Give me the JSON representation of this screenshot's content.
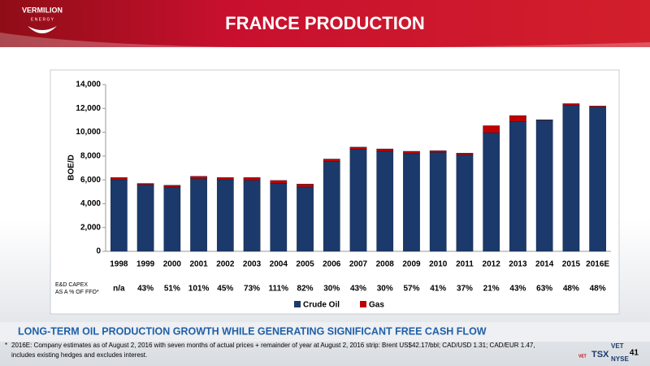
{
  "header": {
    "logo_name": "VERMILION",
    "logo_sub": "E N E R G Y",
    "title": "FRANCE PRODUCTION"
  },
  "chart_data": {
    "type": "bar",
    "stacked": true,
    "ylabel": "BOE/D",
    "categories": [
      "1998",
      "1999",
      "2000",
      "2001",
      "2002",
      "2003",
      "2004",
      "2005",
      "2006",
      "2007",
      "2008",
      "2009",
      "2010",
      "2011",
      "2012",
      "2013",
      "2014",
      "2015",
      "2016E"
    ],
    "series": [
      {
        "name": "Crude Oil",
        "color": "#1b3a6b",
        "values": [
          6000,
          5600,
          5400,
          6100,
          6000,
          5950,
          5700,
          5400,
          7550,
          8550,
          8400,
          8200,
          8300,
          8100,
          9950,
          10900,
          11000,
          12250,
          12100
        ]
      },
      {
        "name": "Gas",
        "color": "#c00000",
        "values": [
          200,
          100,
          150,
          200,
          200,
          250,
          250,
          250,
          200,
          200,
          200,
          200,
          150,
          150,
          600,
          500,
          50,
          150,
          100
        ]
      }
    ],
    "ylim": [
      0,
      14000
    ],
    "yticks": [
      0,
      {
        "value": 2000,
        "label": "2,000"
      },
      {
        "value": 4000,
        "label": "4,000"
      },
      {
        "value": 6000,
        "label": "6,000"
      },
      {
        "value": 8000,
        "label": "8,000"
      },
      {
        "value": 10000,
        "label": "10,000"
      },
      {
        "value": 12000,
        "label": "12,000"
      },
      {
        "value": 14000,
        "label": "14,000"
      }
    ],
    "grid": false,
    "legend": "bottom"
  },
  "table": {
    "row_label": [
      "E&D CAPEX",
      "AS A % OF FFO*"
    ],
    "values": [
      "n/a",
      "43%",
      "51%",
      "101%",
      "45%",
      "73%",
      "111%",
      "82%",
      "30%",
      "43%",
      "30%",
      "57%",
      "41%",
      "37%",
      "21%",
      "43%",
      "63%",
      "48%",
      "48%"
    ]
  },
  "footer": {
    "headline": "LONG-TERM OIL PRODUCTION GROWTH WHILE GENERATING SIGNIFICANT FREE CASH FLOW",
    "footnote_marker": "*",
    "footnote": [
      "2016E: Company estimates as of August 2, 2016 with seven months of actual prices + remainder of year at August 2, 2016 strip: Brent US$42.17/bbl; CAD/USD 1.31; CAD/EUR 1.47,",
      "includes existing hedges and excludes interest."
    ],
    "exchange": [
      "VET",
      "TSX",
      "VET",
      "NYSE"
    ],
    "page": "41"
  }
}
